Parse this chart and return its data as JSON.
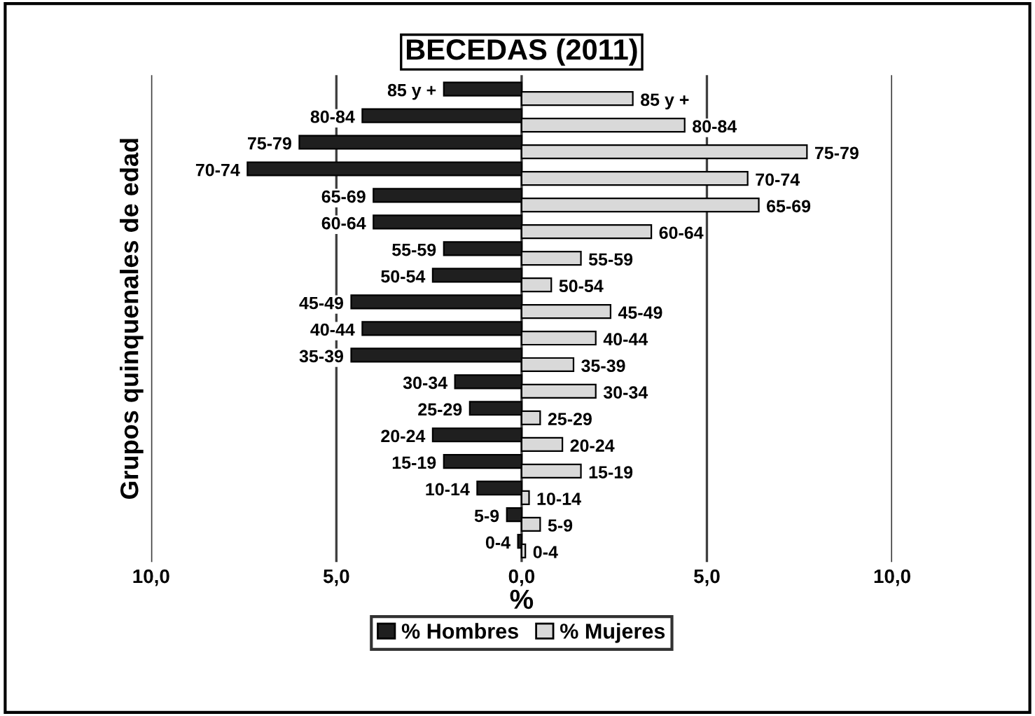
{
  "chart_data": {
    "type": "bar",
    "orientation": "horizontal",
    "title": "BECEDAS (2011)",
    "xlabel": "%",
    "ylabel": "Grupos quinquenales de edad",
    "categories": [
      "85 y +",
      "80-84",
      "75-79",
      "70-74",
      "65-69",
      "60-64",
      "55-59",
      "50-54",
      "45-49",
      "40-44",
      "35-39",
      "30-34",
      "25-29",
      "20-24",
      "15-19",
      "10-14",
      "5-9",
      "0-4"
    ],
    "series": [
      {
        "name": "% Hombres",
        "color": "#1f1f1f",
        "values": [
          -2.1,
          -4.3,
          -6.0,
          -7.4,
          -4.0,
          -4.0,
          -2.1,
          -2.4,
          -4.6,
          -4.3,
          -4.6,
          -1.8,
          -1.4,
          -2.4,
          -2.1,
          -1.2,
          -0.4,
          -0.1
        ]
      },
      {
        "name": "% Mujeres",
        "color": "#d9d9d9",
        "values": [
          3.0,
          4.4,
          7.7,
          6.1,
          6.4,
          3.5,
          1.6,
          0.8,
          2.4,
          2.0,
          1.4,
          2.0,
          0.5,
          1.1,
          1.6,
          0.2,
          0.5,
          0.1
        ]
      }
    ],
    "xlim": [
      -10,
      10
    ],
    "xticks": [
      {
        "value": -10,
        "label": "10,0"
      },
      {
        "value": -5,
        "label": "5,0"
      },
      {
        "value": 0,
        "label": "0,0"
      },
      {
        "value": 5,
        "label": "5,0"
      },
      {
        "value": 10,
        "label": "10,0"
      }
    ],
    "tick_labels": "x",
    "grid": "x",
    "legend": "bottom"
  }
}
